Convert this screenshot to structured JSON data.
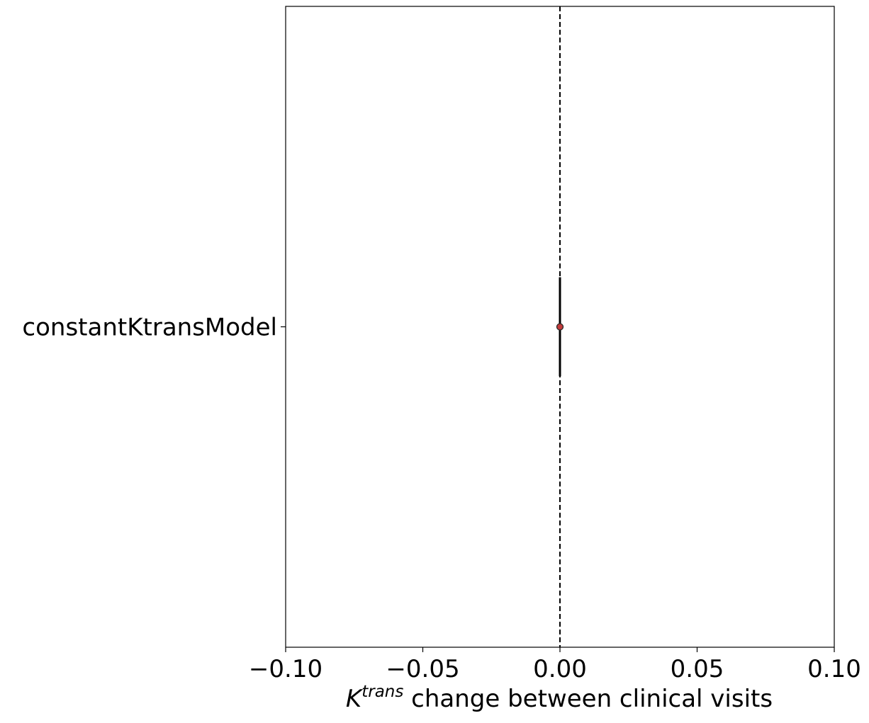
{
  "chart_data": {
    "type": "scatter",
    "categories": [
      "constantKtransModel"
    ],
    "points": [
      {
        "category": "constantKtransModel",
        "value": 0.0,
        "ci": [
          0.0,
          0.0
        ]
      }
    ],
    "reference_line": {
      "x": 0.0,
      "style": "dashed"
    },
    "x_ticks": [
      -0.1,
      -0.05,
      0.0,
      0.05,
      0.1
    ],
    "x_tick_labels": [
      "−0.10",
      "−0.05",
      "0.00",
      "0.05",
      "0.10"
    ],
    "xlim": [
      -0.1,
      0.1
    ],
    "xlabel": {
      "base": "K",
      "superscript": "trans",
      "rest": " change between clinical visits"
    },
    "ylabel": "",
    "title": "",
    "grid": false,
    "colors": {
      "marker_fill": "#c23b3b",
      "marker_edge": "#2a2a2a",
      "errorbar": "#000000",
      "axes": "#000000",
      "reference_line": "#000000"
    }
  }
}
